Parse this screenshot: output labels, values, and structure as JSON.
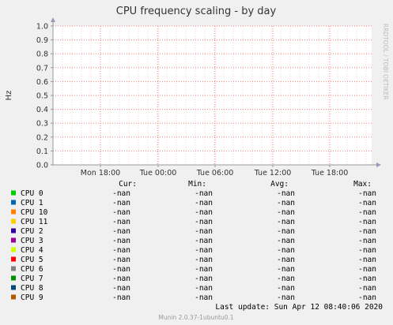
{
  "chart_data": {
    "type": "line",
    "title": "CPU frequency scaling - by day",
    "ylabel": "Hz",
    "watermark": "RRDTOOL / TOBI OETIKER",
    "ylim": [
      0,
      1.0
    ],
    "yticks": [
      "0.0",
      "0.1",
      "0.2",
      "0.3",
      "0.4",
      "0.5",
      "0.6",
      "0.7",
      "0.8",
      "0.9",
      "1.0"
    ],
    "xticks": [
      "Mon 18:00",
      "Tue 00:00",
      "Tue 06:00",
      "Tue 12:00",
      "Tue 18:00"
    ],
    "grid": true,
    "legend_headers": [
      "Cur:",
      "Min:",
      "Avg:",
      "Max:"
    ],
    "series": [
      {
        "name": "CPU 0",
        "color": "#00cc00",
        "cur": "-nan",
        "min": "-nan",
        "avg": "-nan",
        "max": "-nan"
      },
      {
        "name": "CPU 1",
        "color": "#0066b3",
        "cur": "-nan",
        "min": "-nan",
        "avg": "-nan",
        "max": "-nan"
      },
      {
        "name": "CPU 10",
        "color": "#ff8000",
        "cur": "-nan",
        "min": "-nan",
        "avg": "-nan",
        "max": "-nan"
      },
      {
        "name": "CPU 11",
        "color": "#ffcc00",
        "cur": "-nan",
        "min": "-nan",
        "avg": "-nan",
        "max": "-nan"
      },
      {
        "name": "CPU 2",
        "color": "#330099",
        "cur": "-nan",
        "min": "-nan",
        "avg": "-nan",
        "max": "-nan"
      },
      {
        "name": "CPU 3",
        "color": "#990099",
        "cur": "-nan",
        "min": "-nan",
        "avg": "-nan",
        "max": "-nan"
      },
      {
        "name": "CPU 4",
        "color": "#ccff00",
        "cur": "-nan",
        "min": "-nan",
        "avg": "-nan",
        "max": "-nan"
      },
      {
        "name": "CPU 5",
        "color": "#ff0000",
        "cur": "-nan",
        "min": "-nan",
        "avg": "-nan",
        "max": "-nan"
      },
      {
        "name": "CPU 6",
        "color": "#808080",
        "cur": "-nan",
        "min": "-nan",
        "avg": "-nan",
        "max": "-nan"
      },
      {
        "name": "CPU 7",
        "color": "#008f00",
        "cur": "-nan",
        "min": "-nan",
        "avg": "-nan",
        "max": "-nan"
      },
      {
        "name": "CPU 8",
        "color": "#00487d",
        "cur": "-nan",
        "min": "-nan",
        "avg": "-nan",
        "max": "-nan"
      },
      {
        "name": "CPU 9",
        "color": "#b35a00",
        "cur": "-nan",
        "min": "-nan",
        "avg": "-nan",
        "max": "-nan"
      }
    ],
    "last_update": "Last update: Sun Apr 12 08:40:06 2020",
    "footer": "Munin 2.0.37-1ubuntu0.1"
  }
}
